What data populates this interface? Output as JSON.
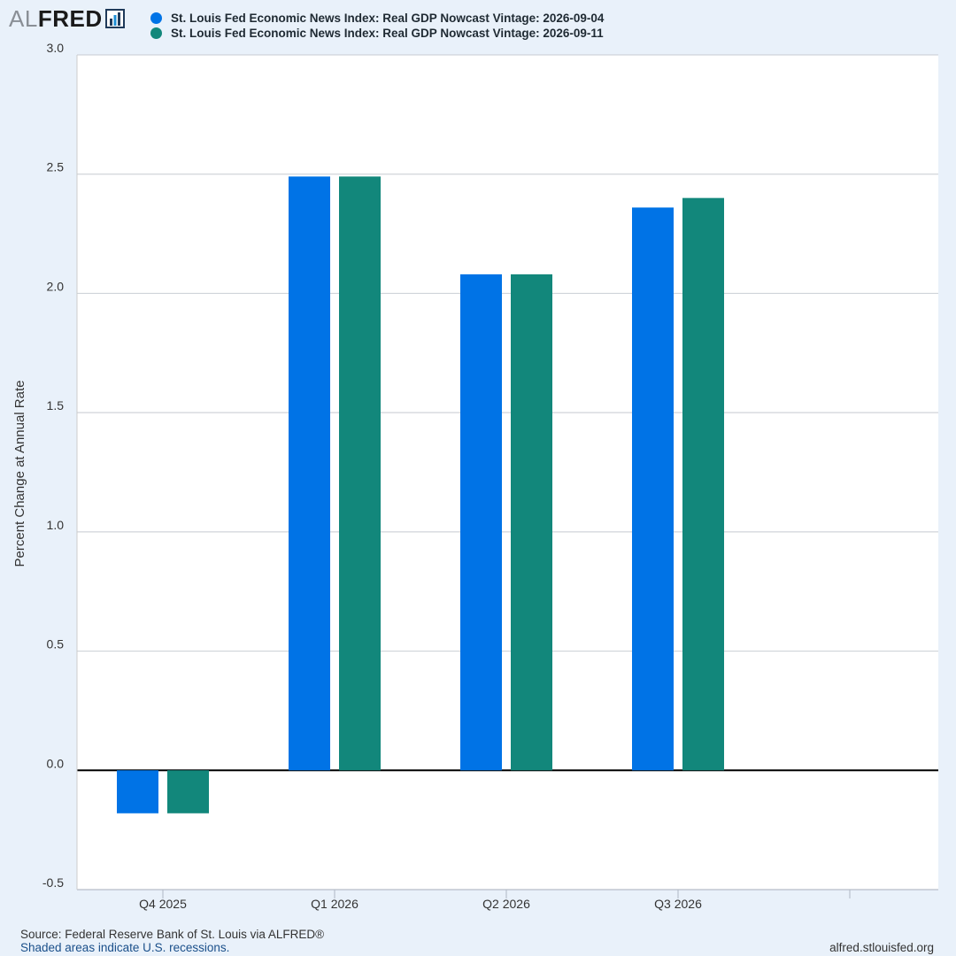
{
  "logo": {
    "prefix": "AL",
    "brand": "FRED"
  },
  "chart_data": {
    "type": "bar",
    "title": "",
    "categories": [
      "Q4 2025",
      "Q1 2026",
      "Q2 2026",
      "Q3 2026"
    ],
    "series": [
      {
        "name": "St. Louis Fed Economic News Index: Real GDP Nowcast Vintage: 2026-09-04",
        "color": "#0073e6",
        "values": [
          -0.18,
          2.49,
          2.08,
          2.36
        ]
      },
      {
        "name": "St. Louis Fed Economic News Index: Real GDP Nowcast Vintage: 2026-09-11",
        "color": "#12877b",
        "values": [
          -0.18,
          2.49,
          2.08,
          2.4
        ]
      }
    ],
    "ylabel": "Percent Change at Annual Rate",
    "xlabel": "",
    "ylim": [
      -0.5,
      3.0
    ],
    "yticks": [
      "-0.5",
      "0.0",
      "0.5",
      "1.0",
      "1.5",
      "2.0",
      "2.5",
      "3.0"
    ],
    "grid": true,
    "legend_position": "top"
  },
  "footer": {
    "source": "Source: Federal Reserve Bank of St. Louis via ALFRED®",
    "recession": "Shaded areas indicate U.S. recessions.",
    "site": "alfred.stlouisfed.org"
  }
}
